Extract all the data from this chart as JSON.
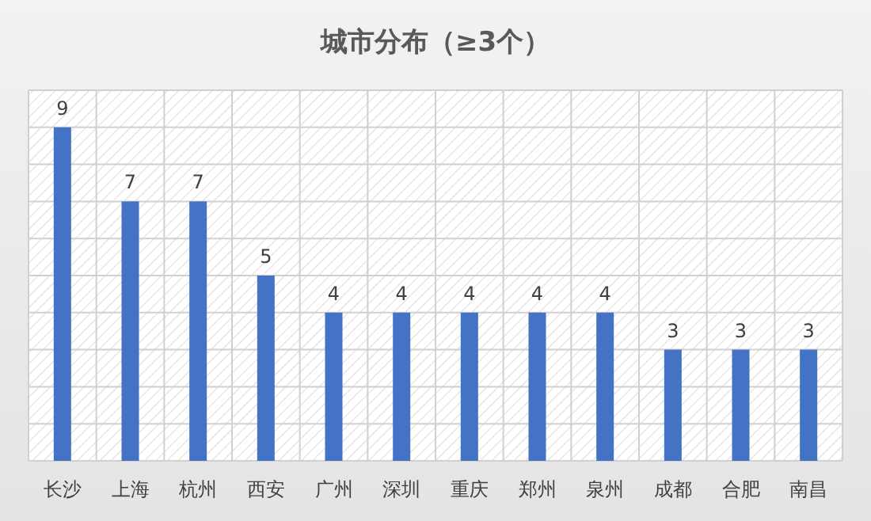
{
  "chart_data": {
    "type": "bar",
    "title": "城市分布（≥3个）",
    "categories": [
      "长沙",
      "上海",
      "杭州",
      "西安",
      "广州",
      "深圳",
      "重庆",
      "郑州",
      "泉州",
      "成都",
      "合肥",
      "南昌"
    ],
    "values": [
      9,
      7,
      7,
      5,
      4,
      4,
      4,
      4,
      4,
      3,
      3,
      3
    ],
    "color": "#4472c4",
    "ylim": [
      0,
      10
    ],
    "grid": true,
    "data_labels": true,
    "tick_labels": "x"
  }
}
